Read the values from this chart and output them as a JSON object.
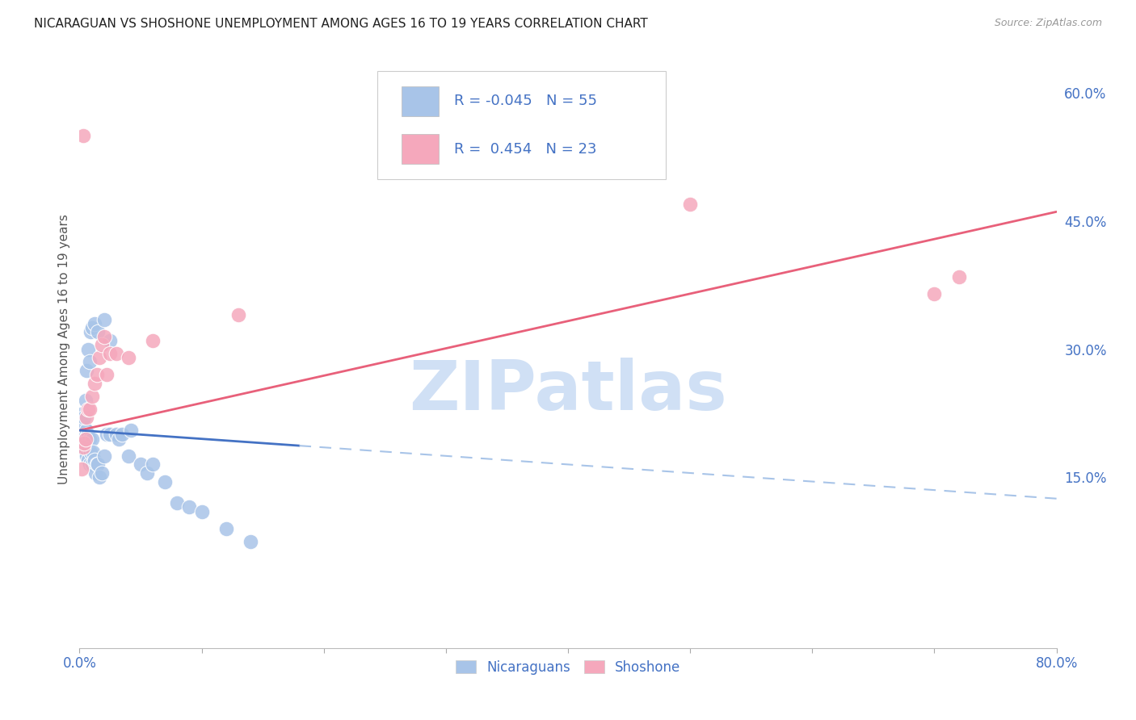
{
  "title": "NICARAGUAN VS SHOSHONE UNEMPLOYMENT AMONG AGES 16 TO 19 YEARS CORRELATION CHART",
  "source": "Source: ZipAtlas.com",
  "ylabel": "Unemployment Among Ages 16 to 19 years",
  "xlim": [
    0.0,
    0.8
  ],
  "ylim": [
    -0.05,
    0.65
  ],
  "xticks": [
    0.0,
    0.1,
    0.2,
    0.3,
    0.4,
    0.5,
    0.6,
    0.7,
    0.8
  ],
  "yticks_right": [
    0.15,
    0.3,
    0.45,
    0.6
  ],
  "yticklabels_right": [
    "15.0%",
    "30.0%",
    "45.0%",
    "60.0%"
  ],
  "nicaraguan_color": "#a8c4e8",
  "shoshone_color": "#f5a8bc",
  "nicaraguan_line_color": "#4472c4",
  "nicaraguan_line_dash_color": "#a8c4e8",
  "shoshone_line_color": "#e8607a",
  "legend_R1": "-0.045",
  "legend_N1": "55",
  "legend_R2": "0.454",
  "legend_N2": "23",
  "legend_color": "#4472c4",
  "watermark": "ZIPatlas",
  "watermark_color": "#d0e0f5",
  "background_color": "#ffffff",
  "grid_color": "#c8c8c8",
  "title_color": "#222222",
  "axis_label_color": "#555555",
  "tick_color": "#4472c4",
  "slope_nic": -0.1,
  "intercept_nic": 0.205,
  "slope_sho": 0.32,
  "intercept_sho": 0.205,
  "nic_x": [
    0.002,
    0.003,
    0.003,
    0.004,
    0.004,
    0.005,
    0.005,
    0.005,
    0.006,
    0.006,
    0.006,
    0.007,
    0.007,
    0.007,
    0.008,
    0.008,
    0.009,
    0.01,
    0.01,
    0.011,
    0.012,
    0.013,
    0.014,
    0.015,
    0.016,
    0.018,
    0.02,
    0.022,
    0.025,
    0.03,
    0.032,
    0.035,
    0.04,
    0.042,
    0.05,
    0.055,
    0.06,
    0.07,
    0.08,
    0.09,
    0.1,
    0.12,
    0.14,
    0.003,
    0.004,
    0.005,
    0.006,
    0.007,
    0.008,
    0.009,
    0.01,
    0.012,
    0.015,
    0.02,
    0.025
  ],
  "nic_y": [
    0.195,
    0.2,
    0.195,
    0.21,
    0.185,
    0.2,
    0.195,
    0.18,
    0.205,
    0.19,
    0.175,
    0.2,
    0.185,
    0.17,
    0.195,
    0.165,
    0.18,
    0.195,
    0.165,
    0.18,
    0.17,
    0.155,
    0.165,
    0.165,
    0.15,
    0.155,
    0.175,
    0.2,
    0.2,
    0.2,
    0.195,
    0.2,
    0.175,
    0.205,
    0.165,
    0.155,
    0.165,
    0.145,
    0.12,
    0.115,
    0.11,
    0.09,
    0.075,
    0.225,
    0.22,
    0.24,
    0.275,
    0.3,
    0.285,
    0.32,
    0.325,
    0.33,
    0.32,
    0.335,
    0.31
  ],
  "sho_x": [
    0.002,
    0.003,
    0.004,
    0.005,
    0.006,
    0.007,
    0.008,
    0.01,
    0.012,
    0.014,
    0.016,
    0.018,
    0.02,
    0.022,
    0.025,
    0.03,
    0.04,
    0.06,
    0.13,
    0.5,
    0.7,
    0.72,
    0.003
  ],
  "sho_y": [
    0.16,
    0.185,
    0.19,
    0.195,
    0.22,
    0.23,
    0.23,
    0.245,
    0.26,
    0.27,
    0.29,
    0.305,
    0.315,
    0.27,
    0.295,
    0.295,
    0.29,
    0.31,
    0.34,
    0.47,
    0.365,
    0.385,
    0.55
  ]
}
